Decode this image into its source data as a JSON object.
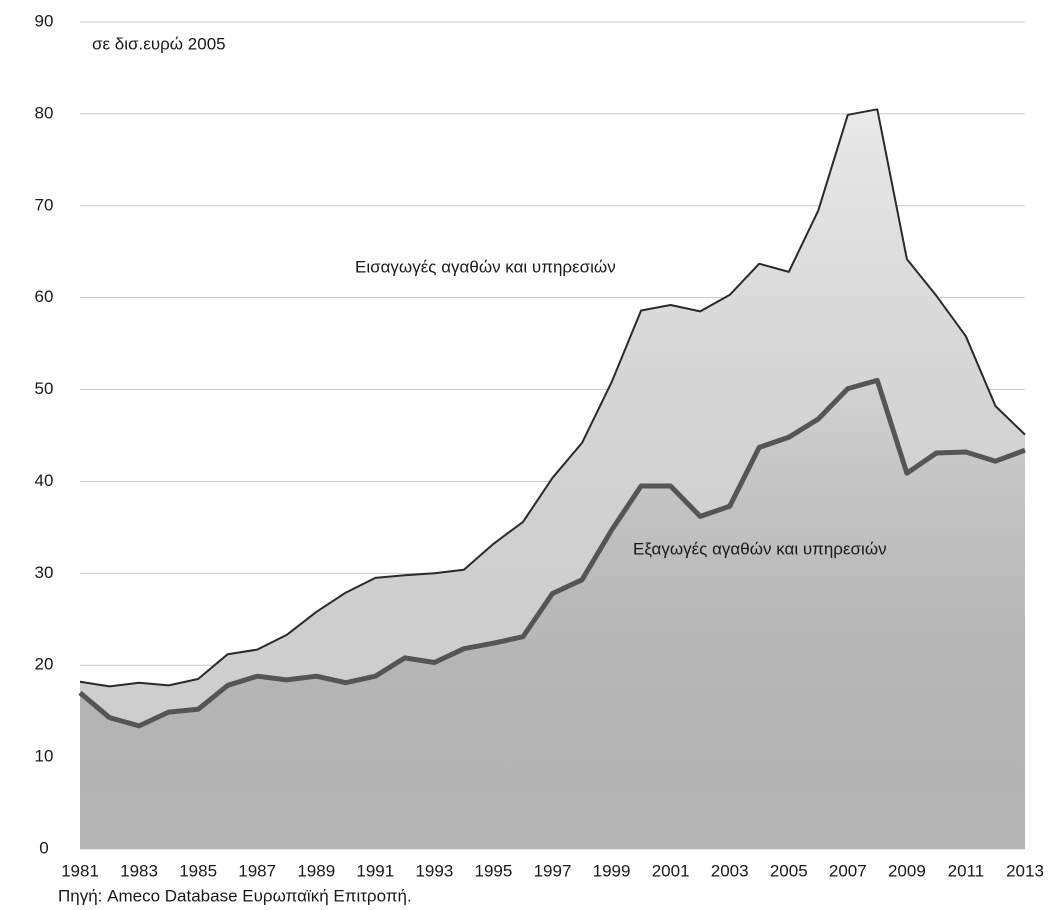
{
  "chart_data": {
    "type": "area",
    "subtitle": "σε δισ.ευρώ 2005",
    "source": "Πηγή: Ameco Database Ευρωπαϊκή Επιτροπή.",
    "x": [
      1981,
      1982,
      1983,
      1984,
      1985,
      1986,
      1987,
      1988,
      1989,
      1990,
      1991,
      1992,
      1993,
      1994,
      1995,
      1996,
      1997,
      1998,
      1999,
      2000,
      2001,
      2002,
      2003,
      2004,
      2005,
      2006,
      2007,
      2008,
      2009,
      2010,
      2011,
      2012,
      2013
    ],
    "xlim": [
      1981,
      2013
    ],
    "xticks": [
      1981,
      1983,
      1985,
      1987,
      1989,
      1991,
      1993,
      1995,
      1997,
      1999,
      2001,
      2003,
      2005,
      2007,
      2009,
      2011,
      2013
    ],
    "ylim": [
      0,
      90
    ],
    "yticks": [
      0,
      10,
      20,
      30,
      40,
      50,
      60,
      70,
      80,
      90
    ],
    "grid": true,
    "series": [
      {
        "name": "Εισαγωγές αγαθών και υπηρεσιών",
        "color": "#e2e2e2",
        "line_color": "#2a2a2a",
        "values": [
          18.2,
          17.7,
          18.1,
          17.8,
          18.5,
          21.2,
          21.7,
          23.3,
          25.8,
          27.9,
          29.5,
          29.8,
          30.0,
          30.4,
          33.2,
          35.6,
          40.4,
          44.2,
          50.8,
          58.6,
          59.2,
          58.5,
          60.3,
          63.7,
          62.8,
          69.5,
          79.9,
          80.5,
          64.2,
          60.2,
          55.8,
          48.2,
          45.1
        ]
      },
      {
        "name": "Εξαγωγές αγαθών και υπηρεσιών",
        "color": "#c4c4c4",
        "line_color": "#555555",
        "values": [
          17.0,
          14.3,
          13.4,
          14.9,
          15.2,
          17.8,
          18.8,
          18.4,
          18.8,
          18.1,
          18.8,
          20.8,
          20.3,
          21.8,
          22.4,
          23.1,
          27.8,
          29.3,
          34.7,
          39.5,
          39.5,
          36.2,
          37.3,
          43.7,
          44.8,
          46.8,
          50.1,
          51.0,
          40.9,
          43.1,
          43.2,
          42.2,
          43.4
        ]
      }
    ]
  }
}
